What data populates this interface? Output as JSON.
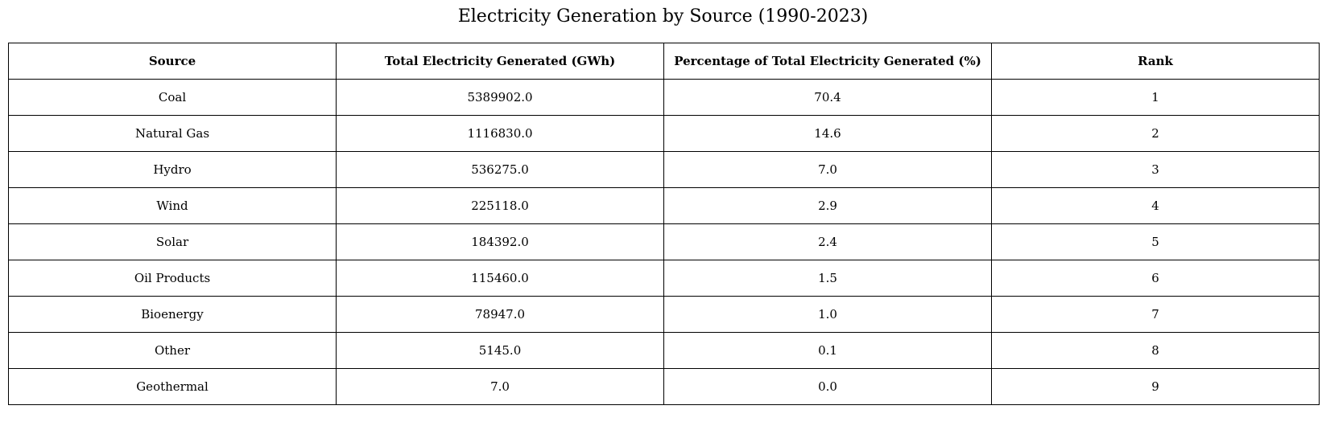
{
  "chart_data": {
    "type": "table",
    "title": "Electricity Generation by Source (1990-2023)",
    "columns": [
      "Source",
      "Total Electricity Generated (GWh)",
      "Percentage of Total Electricity Generated (%)",
      "Rank"
    ],
    "rows": [
      [
        "Coal",
        "5389902.0",
        "70.4",
        "1"
      ],
      [
        "Natural Gas",
        "1116830.0",
        "14.6",
        "2"
      ],
      [
        "Hydro",
        "536275.0",
        "7.0",
        "3"
      ],
      [
        "Wind",
        "225118.0",
        "2.9",
        "4"
      ],
      [
        "Solar",
        "184392.0",
        "2.4",
        "5"
      ],
      [
        "Oil Products",
        "115460.0",
        "1.5",
        "6"
      ],
      [
        "Bioenergy",
        "78947.0",
        "1.0",
        "7"
      ],
      [
        "Other",
        "5145.0",
        "0.1",
        "8"
      ],
      [
        "Geothermal",
        "7.0",
        "0.0",
        "9"
      ]
    ]
  }
}
